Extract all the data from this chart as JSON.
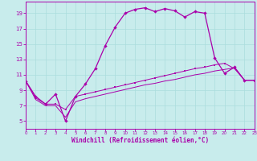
{
  "background_color": "#c8ecec",
  "grid_color": "#aadddd",
  "line_color": "#aa00aa",
  "xlabel": "Windchill (Refroidissement éolien,°C)",
  "xlim": [
    0,
    23
  ],
  "ylim": [
    4,
    20.5
  ],
  "xticks": [
    0,
    1,
    2,
    3,
    4,
    5,
    6,
    7,
    8,
    9,
    10,
    11,
    12,
    13,
    14,
    15,
    16,
    17,
    18,
    19,
    20,
    21,
    22,
    23
  ],
  "yticks": [
    5,
    7,
    9,
    11,
    13,
    15,
    17,
    19
  ],
  "line1_x": [
    0,
    1,
    2,
    3,
    4,
    5,
    6,
    7,
    8,
    9,
    10,
    11,
    12,
    13,
    14,
    15,
    16,
    17,
    18,
    19,
    20,
    21,
    22,
    23
  ],
  "line1_y": [
    10.2,
    8.2,
    7.2,
    8.5,
    5.0,
    8.2,
    9.8,
    11.8,
    14.8,
    17.2,
    19.0,
    19.5,
    19.7,
    19.2,
    19.6,
    19.3,
    18.5,
    19.2,
    19.0,
    13.2,
    11.2,
    12.0,
    10.3,
    10.3
  ],
  "line2_x": [
    0,
    1,
    2,
    3,
    4,
    5,
    6,
    7,
    8,
    9,
    10,
    11,
    12,
    13,
    14,
    15,
    16,
    17,
    18,
    19,
    20,
    21,
    22,
    23
  ],
  "line2_y": [
    10.2,
    8.0,
    7.2,
    7.2,
    6.5,
    8.2,
    8.5,
    8.8,
    9.1,
    9.4,
    9.7,
    10.0,
    10.3,
    10.6,
    10.9,
    11.2,
    11.5,
    11.8,
    12.0,
    12.3,
    12.5,
    11.8,
    10.3,
    10.3
  ],
  "line3_x": [
    0,
    1,
    2,
    3,
    4,
    5,
    6,
    7,
    8,
    9,
    10,
    11,
    12,
    13,
    14,
    15,
    16,
    17,
    18,
    19,
    20,
    21,
    22,
    23
  ],
  "line3_y": [
    10.2,
    7.8,
    7.0,
    7.0,
    5.5,
    7.5,
    7.9,
    8.2,
    8.5,
    8.8,
    9.1,
    9.4,
    9.7,
    9.9,
    10.2,
    10.4,
    10.7,
    11.0,
    11.2,
    11.5,
    11.7,
    11.9,
    10.3,
    10.3
  ]
}
